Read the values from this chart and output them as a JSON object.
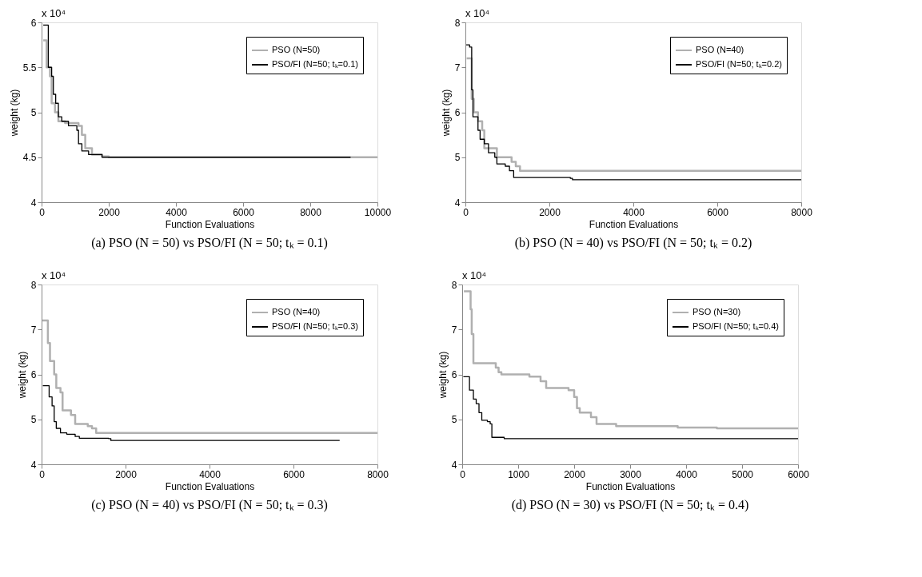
{
  "chart_data": [
    {
      "type": "step",
      "title": "(a)  PSO (N = 50) vs PSO/FI (N = 50; tₖ = 0.1)",
      "xlabel": "Function Evaluations",
      "ylabel": "weight (kg)",
      "annotations": [
        "x 10⁴"
      ],
      "xlim": [
        0,
        10000
      ],
      "xticks": [
        0,
        2000,
        4000,
        6000,
        8000,
        10000
      ],
      "ylim": [
        4,
        6
      ],
      "yticks": [
        4,
        4.5,
        5,
        5.5,
        6
      ],
      "grid": false,
      "legend": "top right",
      "series": [
        {
          "name": "PSO (N=50)",
          "color": "#b0b0b0",
          "x": [
            50,
            100,
            150,
            250,
            300,
            400,
            500,
            700,
            1000,
            1100,
            1200,
            1300,
            1500,
            1800,
            2000,
            10000
          ],
          "values": [
            5.8,
            5.8,
            5.5,
            5.4,
            5.1,
            5.0,
            4.9,
            4.88,
            4.88,
            4.85,
            4.75,
            4.6,
            4.53,
            4.51,
            4.5,
            4.5
          ]
        },
        {
          "name": "PSO/FI (N=50; tₖ=0.1)",
          "color": "#000000",
          "x": [
            50,
            170,
            200,
            300,
            350,
            420,
            500,
            600,
            800,
            1000,
            1050,
            1100,
            1200,
            1400,
            1800,
            9200
          ],
          "values": [
            5.97,
            5.97,
            5.5,
            5.4,
            5.2,
            5.1,
            4.95,
            4.9,
            4.85,
            4.85,
            4.8,
            4.65,
            4.57,
            4.53,
            4.5,
            4.5
          ]
        }
      ]
    },
    {
      "type": "step",
      "title": "(b)  PSO (N = 40) vs PSO/FI (N = 50; tₖ = 0.2)",
      "xlabel": "Function Evaluations",
      "ylabel": "weight (kg)",
      "annotations": [
        "x 10⁴"
      ],
      "xlim": [
        0,
        8000
      ],
      "xticks": [
        0,
        2000,
        4000,
        6000,
        8000
      ],
      "ylim": [
        4,
        8
      ],
      "yticks": [
        4,
        5,
        6,
        7,
        8
      ],
      "grid": false,
      "legend": "top right",
      "series": [
        {
          "name": "PSO (N=40)",
          "color": "#b0b0b0",
          "x": [
            30,
            100,
            150,
            200,
            300,
            400,
            450,
            600,
            750,
            1100,
            1200,
            1300,
            8000
          ],
          "values": [
            7.2,
            7.2,
            6.3,
            6.0,
            5.8,
            5.6,
            5.2,
            5.2,
            5.0,
            4.9,
            4.8,
            4.7,
            4.7
          ]
        },
        {
          "name": "PSO/FI (N=50; tₖ=0.2)",
          "color": "#000000",
          "x": [
            20,
            100,
            150,
            180,
            250,
            300,
            350,
            450,
            550,
            700,
            750,
            950,
            1050,
            1150,
            2500,
            2550,
            8000
          ],
          "values": [
            7.5,
            7.45,
            6.5,
            5.9,
            5.9,
            5.6,
            5.4,
            5.3,
            5.1,
            5.0,
            4.85,
            4.8,
            4.7,
            4.55,
            4.53,
            4.5,
            4.5
          ]
        }
      ]
    },
    {
      "type": "step",
      "title": "(c)  PSO (N = 40) vs PSO/FI (N = 50; tₖ = 0.3)",
      "xlabel": "Function Evaluations",
      "ylabel": "weight (kg)",
      "annotations": [
        "x 10⁴"
      ],
      "xlim": [
        0,
        8000
      ],
      "xticks": [
        0,
        2000,
        4000,
        6000,
        8000
      ],
      "ylim": [
        4,
        8
      ],
      "yticks": [
        4,
        5,
        6,
        7,
        8
      ],
      "grid": false,
      "legend": "top right",
      "series": [
        {
          "name": "PSO (N=40)",
          "color": "#b0b0b0",
          "x": [
            20,
            100,
            150,
            200,
            300,
            350,
            450,
            500,
            700,
            800,
            1100,
            1200,
            1300,
            8000
          ],
          "values": [
            7.2,
            7.2,
            6.7,
            6.3,
            6.0,
            5.7,
            5.6,
            5.2,
            5.1,
            4.9,
            4.85,
            4.8,
            4.7,
            4.7
          ]
        },
        {
          "name": "PSO/FI (N=50; tₖ=0.3)",
          "color": "#000000",
          "x": [
            30,
            130,
            180,
            250,
            300,
            350,
            450,
            600,
            800,
            900,
            1600,
            1650,
            7100
          ],
          "values": [
            5.75,
            5.75,
            5.5,
            5.3,
            4.95,
            4.8,
            4.7,
            4.67,
            4.62,
            4.58,
            4.57,
            4.53,
            4.53
          ]
        }
      ]
    },
    {
      "type": "step",
      "title": "(d)  PSO (N = 30) vs PSO/FI (N = 50; tₖ = 0.4)",
      "xlabel": "Function Evaluations",
      "ylabel": "weight (kg)",
      "annotations": [
        "x 10⁴"
      ],
      "xlim": [
        0,
        6000
      ],
      "xticks": [
        0,
        1000,
        2000,
        3000,
        4000,
        5000,
        6000
      ],
      "ylim": [
        4,
        8
      ],
      "yticks": [
        4,
        5,
        6,
        7,
        8
      ],
      "grid": false,
      "legend": "top right",
      "series": [
        {
          "name": "PSO (N=30)",
          "color": "#b0b0b0",
          "x": [
            30,
            100,
            150,
            170,
            200,
            500,
            600,
            650,
            700,
            1100,
            1200,
            1400,
            1500,
            1900,
            2000,
            2050,
            2100,
            2300,
            2400,
            2700,
            2750,
            3800,
            3850,
            4500,
            4550,
            6000
          ],
          "values": [
            7.85,
            7.85,
            7.45,
            6.9,
            6.25,
            6.25,
            6.15,
            6.05,
            6.0,
            6.0,
            5.95,
            5.85,
            5.7,
            5.65,
            5.5,
            5.25,
            5.15,
            5.05,
            4.9,
            4.9,
            4.85,
            4.85,
            4.82,
            4.82,
            4.8,
            4.8
          ]
        },
        {
          "name": "PSO/FI (N=50; tₖ=0.4)",
          "color": "#000000",
          "x": [
            20,
            100,
            130,
            200,
            250,
            300,
            350,
            450,
            500,
            530,
            750,
            6000
          ],
          "values": [
            5.95,
            5.95,
            5.65,
            5.45,
            5.35,
            5.15,
            4.98,
            4.95,
            4.9,
            4.6,
            4.57,
            4.57
          ]
        }
      ]
    }
  ]
}
